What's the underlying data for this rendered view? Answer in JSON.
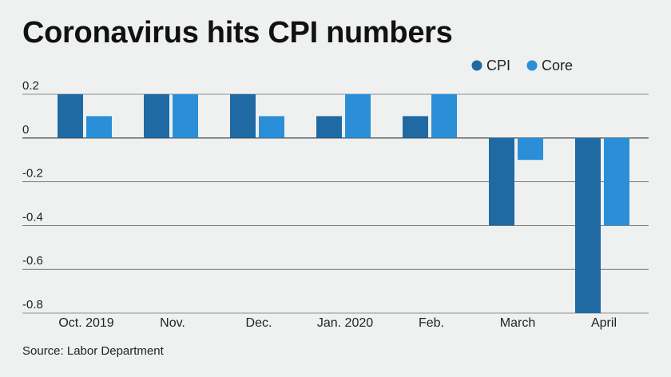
{
  "chart_data": {
    "type": "bar",
    "title": "Coronavirus hits CPI numbers",
    "categories": [
      "Oct. 2019",
      "Nov.",
      "Dec.",
      "Jan. 2020",
      "Feb.",
      "March",
      "April"
    ],
    "series": [
      {
        "name": "CPI",
        "values": [
          0.2,
          0.2,
          0.2,
          0.1,
          0.1,
          -0.4,
          -0.8
        ]
      },
      {
        "name": "Core",
        "values": [
          0.1,
          0.2,
          0.1,
          0.2,
          0.2,
          -0.1,
          -0.4
        ]
      }
    ],
    "y_ticks": [
      "0.2",
      "0",
      "-0.2",
      "-0.4",
      "-0.6",
      "-0.8"
    ],
    "ylim": [
      -0.8,
      0.2
    ],
    "legend_position": "top-right",
    "grid": true,
    "source": "Source: Labor Department"
  },
  "colors": {
    "cpi": "#1f6aa3",
    "core": "#2b8fd8",
    "background": "#eef1f0",
    "gridline": "#333333"
  }
}
